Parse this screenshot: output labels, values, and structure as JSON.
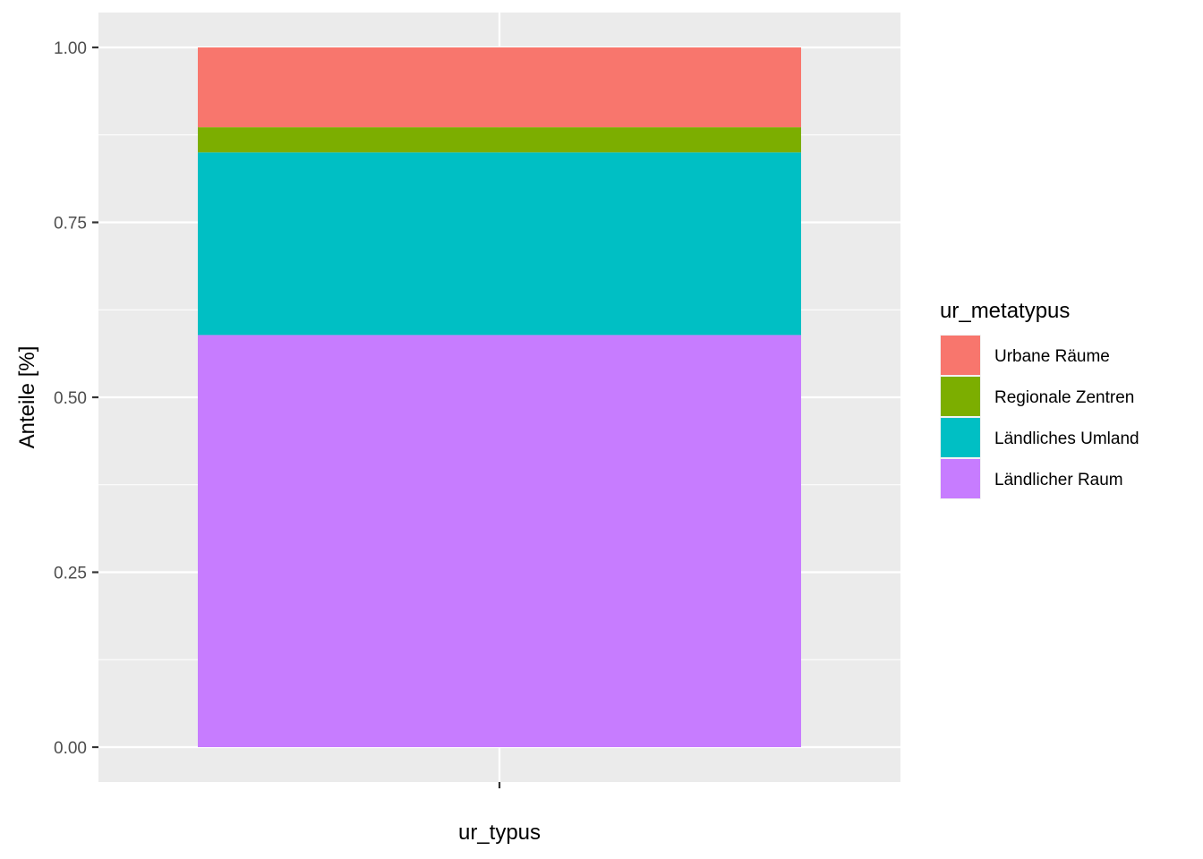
{
  "chart_data": {
    "type": "bar",
    "stacked": true,
    "xlabel": "ur_typus",
    "ylabel": "Anteile [%]",
    "categories": [
      ""
    ],
    "ylim": [
      0,
      1
    ],
    "yticks": [
      "0.00",
      "0.25",
      "0.50",
      "0.75",
      "1.00"
    ],
    "grid": true,
    "legend": {
      "title": "ur_metatypus",
      "position": "right"
    },
    "series": [
      {
        "name": "Urbane Räume",
        "color": "#F8766D",
        "values": [
          0.114
        ]
      },
      {
        "name": "Regionale Zentren",
        "color": "#7CAE00",
        "values": [
          0.036
        ]
      },
      {
        "name": "Ländliches Umland",
        "color": "#00BFC4",
        "values": [
          0.261
        ]
      },
      {
        "name": "Ländlicher Raum",
        "color": "#C77CFF",
        "values": [
          0.589
        ]
      }
    ],
    "colors": {
      "panel": "#EBEBEB",
      "grid": "#FFFFFF",
      "tick": "#333333"
    }
  }
}
